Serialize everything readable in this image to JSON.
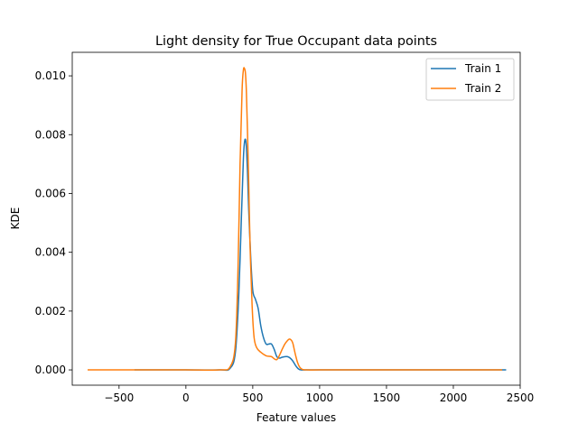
{
  "chart_data": {
    "type": "line",
    "title": "Light density for True Occupant data points",
    "xlabel": "Feature values",
    "ylabel": "KDE",
    "xlim": [
      -850,
      2500
    ],
    "ylim": [
      -0.00052,
      0.0108
    ],
    "xticks": [
      -500,
      0,
      500,
      1000,
      1500,
      2000,
      2500
    ],
    "xtick_labels": [
      "−500",
      "0",
      "500",
      "1000",
      "1500",
      "2000",
      "2500"
    ],
    "yticks": [
      0,
      0.002,
      0.004,
      0.006,
      0.008,
      0.01
    ],
    "ytick_labels": [
      "0.000",
      "0.002",
      "0.004",
      "0.006",
      "0.008",
      "0.010"
    ],
    "grid": false,
    "legend_position": "top-right",
    "series": [
      {
        "name": "Train 1",
        "color": "#1f77b4",
        "x": [
          -380,
          0,
          250,
          330,
          370,
          395,
          415,
          430,
          440,
          450,
          460,
          470,
          485,
          500,
          520,
          540,
          560,
          580,
          600,
          620,
          640,
          660,
          680,
          700,
          720,
          740,
          760,
          780,
          800,
          820,
          840,
          860,
          900,
          1000,
          1200,
          1500,
          1700,
          2000,
          2390
        ],
        "y": [
          0.0,
          0.0,
          0.0,
          5e-05,
          0.0006,
          0.0025,
          0.0052,
          0.0072,
          0.0078,
          0.0077,
          0.0068,
          0.0054,
          0.0038,
          0.0027,
          0.0024,
          0.0021,
          0.0015,
          0.0011,
          0.00088,
          0.00088,
          0.00088,
          0.0007,
          0.00045,
          0.0004,
          0.00043,
          0.00045,
          0.00045,
          0.0004,
          0.0003,
          0.00015,
          4e-05,
          0.0,
          0.0,
          0.0,
          0.0,
          0.0,
          0.0,
          0.0,
          0.0
        ]
      },
      {
        "name": "Train 2",
        "color": "#ff7f0e",
        "x": [
          -730,
          -300,
          0,
          250,
          330,
          370,
          390,
          405,
          420,
          430,
          438,
          445,
          452,
          460,
          470,
          480,
          495,
          510,
          530,
          560,
          600,
          640,
          660,
          680,
          700,
          720,
          740,
          760,
          775,
          790,
          800,
          810,
          820,
          835,
          850,
          870,
          900,
          1000,
          1200,
          1500,
          1700,
          2000,
          2360
        ],
        "y": [
          0.0,
          0.0,
          0.0,
          0.0,
          0.0001,
          0.0009,
          0.0035,
          0.007,
          0.0095,
          0.0102,
          0.01025,
          0.0101,
          0.0095,
          0.0082,
          0.0063,
          0.0042,
          0.0022,
          0.0011,
          0.00075,
          0.0006,
          0.00048,
          0.00045,
          0.00038,
          0.00035,
          0.0005,
          0.0007,
          0.00088,
          0.001,
          0.00105,
          0.001,
          0.0009,
          0.0007,
          0.0005,
          0.00025,
          0.0001,
          2e-05,
          0.0,
          0.0,
          0.0,
          0.0,
          0.0,
          0.0,
          0.0
        ]
      }
    ]
  }
}
